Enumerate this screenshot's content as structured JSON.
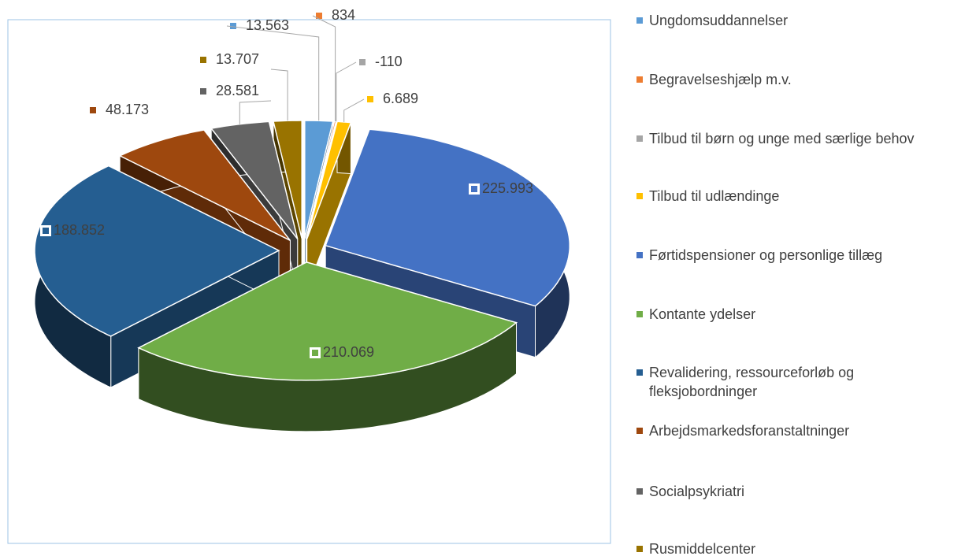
{
  "chart_data": {
    "type": "pie",
    "categories": [
      "Ungdomsuddannelser",
      "Begravelseshjælp m.v.",
      "Tilbud til børn og unge med særlige behov",
      "Tilbud til udlændinge",
      "Førtidspensioner og personlige tillæg",
      "Kontante ydelser",
      "Revalidering, ressourceforløb og fleksjobordninger",
      "Arbejdsmarkedsforanstaltninger",
      "Socialpsykriatri",
      "Rusmiddelcenter"
    ],
    "values": [
      13563,
      834,
      -110,
      6689,
      225993,
      210069,
      188852,
      48173,
      28581,
      13707
    ],
    "value_labels": [
      "13.563",
      "834",
      "-110",
      "6.689",
      "225.993",
      "210.069",
      "188.852",
      "48.173",
      "28.581",
      "13.707"
    ],
    "colors": [
      "#5b9bd5",
      "#ed7d31",
      "#a5a5a5",
      "#ffc000",
      "#4472c4",
      "#70ad47",
      "#255e91",
      "#9e480e",
      "#636363",
      "#997300"
    ],
    "legend": "right"
  }
}
